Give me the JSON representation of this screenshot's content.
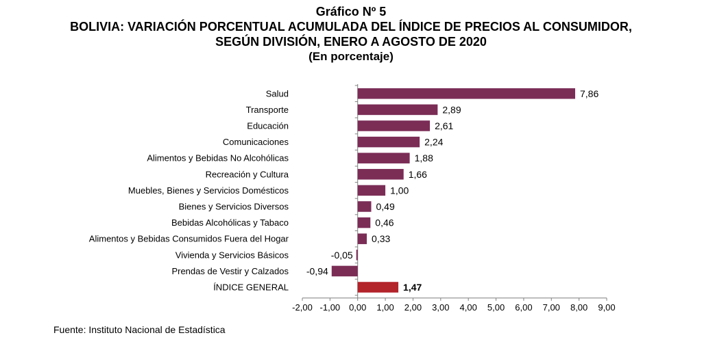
{
  "header": {
    "line1": "Gráfico Nº 5",
    "line2": "BOLIVIA: VARIACIÓN PORCENTUAL ACUMULADA DEL ÍNDICE DE PRECIOS AL CONSUMIDOR,",
    "line3": "SEGÚN DIVISIÓN, ENERO A AGOSTO DE 2020",
    "line4": "(En porcentaje)"
  },
  "footer": {
    "source": "Fuente: Instituto Nacional de Estadística"
  },
  "colors": {
    "bar": "#7b2d56",
    "highlight": "#b3232a",
    "axis": "#7f7f7f"
  },
  "chart_data": {
    "type": "bar",
    "orientation": "horizontal",
    "categories": [
      "Salud",
      "Transporte",
      "Educación",
      "Comunicaciones",
      "Alimentos y Bebidas No Alcohólicas",
      "Recreación y Cultura",
      "Muebles, Bienes y Servicios Domésticos",
      "Bienes y Servicios Diversos",
      "Bebidas Alcohólicas y Tabaco",
      "Alimentos y Bebidas Consumidos Fuera del Hogar",
      "Vivienda y Servicios Básicos",
      "Prendas de Vestir y Calzados",
      "ÍNDICE GENERAL"
    ],
    "values": [
      7.86,
      2.89,
      2.61,
      2.24,
      1.88,
      1.66,
      1.0,
      0.49,
      0.46,
      0.33,
      -0.05,
      -0.94,
      1.47
    ],
    "value_labels": [
      "7,86",
      "2,89",
      "2,61",
      "2,24",
      "1,88",
      "1,66",
      "1,00",
      "0,49",
      "0,46",
      "0,33",
      "-0,05",
      "-0,94",
      "1,47"
    ],
    "highlight_category": "ÍNDICE GENERAL",
    "xlim": [
      -2,
      9
    ],
    "xticks": [
      -2,
      -1,
      0,
      1,
      2,
      3,
      4,
      5,
      6,
      7,
      8,
      9
    ],
    "xtick_labels": [
      "-2,00",
      "-1,00",
      "0,00",
      "1,00",
      "2,00",
      "3,00",
      "4,00",
      "5,00",
      "6,00",
      "7,00",
      "8,00",
      "9,00"
    ],
    "grid": false,
    "legend": "none",
    "xlabel": "",
    "ylabel": ""
  }
}
